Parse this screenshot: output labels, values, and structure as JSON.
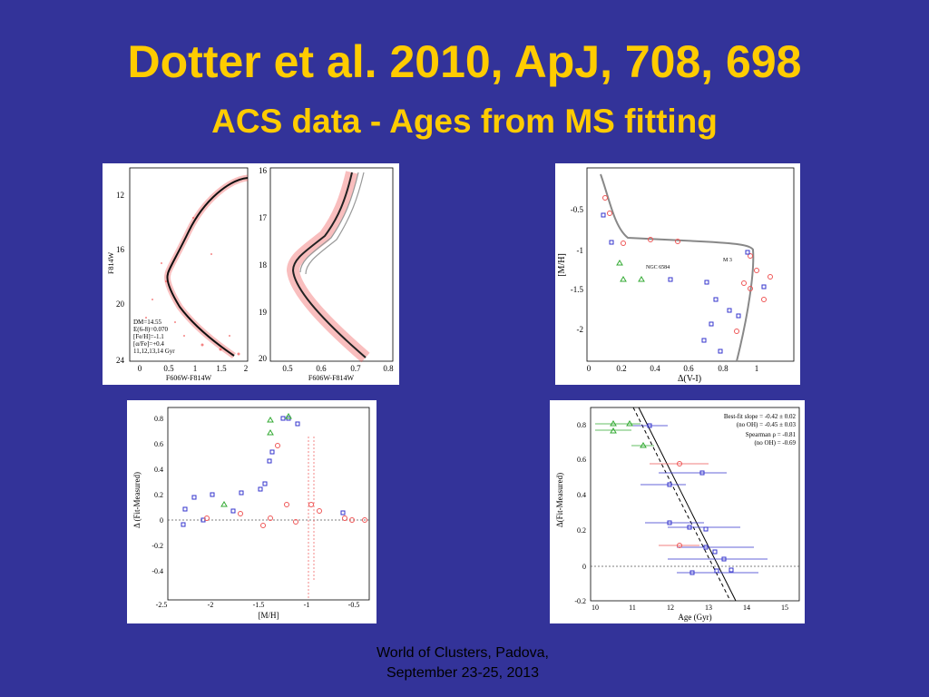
{
  "slide": {
    "title": "Dotter et al. 2010, ApJ, 708, 698",
    "subtitle": "ACS data - Ages from MS fitting",
    "footer_line1": "World of Clusters, Padova,",
    "footer_line2": "September 23-25, 2013",
    "background_color": "#333399",
    "title_color": "#ffcc00"
  },
  "figure_cmd": {
    "left": {
      "xlabel": "F606W-F814W",
      "ylabel": "F814W",
      "xticks": [
        "0",
        "0.5",
        "1",
        "1.5",
        "2"
      ],
      "yticks": [
        "12",
        "16",
        "20",
        "24"
      ],
      "legend": [
        "DM=14.55",
        "E(6-8)=0.070",
        "[Fe/H]=-1.1",
        "[α/Fe]=+0.4",
        "11,12,13,14 Gyr"
      ]
    },
    "right": {
      "xlabel": "F606W-F814W",
      "xticks": [
        "0.5",
        "0.6",
        "0.7",
        "0.8"
      ],
      "yticks": [
        "16",
        "17",
        "18",
        "19",
        "20"
      ]
    }
  },
  "figure_mh_dvi": {
    "xlabel": "Δ(V-I)",
    "ylabel": "[M/H]",
    "xticks": [
      "0",
      "0.2",
      "0.4",
      "0.6",
      "0.8",
      "1"
    ],
    "yticks": [
      "-0.5",
      "-1",
      "-1.5",
      "-2"
    ],
    "annotations": [
      "NGC 6584",
      "M 3"
    ]
  },
  "figure_delta_mh": {
    "xlabel": "[M/H]",
    "ylabel": "Δ (Fit-Measured)",
    "xticks": [
      "-2.5",
      "-2",
      "-1.5",
      "-1",
      "-0.5"
    ],
    "yticks": [
      "0.8",
      "0.6",
      "0.4",
      "0.2",
      "0",
      "-0.2",
      "-0.4"
    ]
  },
  "figure_delta_age": {
    "xlabel": "Age (Gyr)",
    "ylabel": "Δ(Fit-Measured)",
    "xticks": [
      "10",
      "11",
      "12",
      "13",
      "14",
      "15"
    ],
    "yticks": [
      "0.8",
      "0.6",
      "0.4",
      "0.2",
      "0",
      "-0.2"
    ],
    "stats": [
      "Best-fit slope = -0.42 ± 0.02",
      "(no OH) = -0.45 ± 0.03",
      "Spearman ρ = -0.81",
      "(no OH) = -0.69"
    ]
  }
}
